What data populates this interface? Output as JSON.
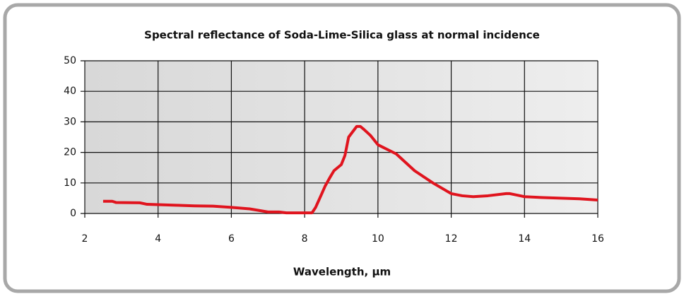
{
  "chart_data": {
    "type": "line",
    "title": "Spectral reflectance of Soda-Lime-Silica glass at normal incidence",
    "x_label": "Wavelength, µm",
    "series": [
      {
        "name": "Reflectance",
        "color": "#e0141e",
        "x": [
          2.5,
          2.75,
          2.85,
          3.5,
          3.7,
          4.5,
          5,
          5.5,
          6,
          6.5,
          7,
          7.3,
          7.5,
          8,
          8.2,
          8.3,
          8.45,
          8.56,
          8.7,
          8.8,
          9.0,
          9.1,
          9.2,
          9.42,
          9.52,
          9.62,
          9.8,
          10,
          10.5,
          11,
          11.5,
          12,
          12.3,
          12.6,
          13,
          13.5,
          13.6,
          13.8,
          14,
          14.5,
          15,
          15.5,
          16
        ],
        "values": [
          4,
          4,
          3.6,
          3.5,
          3,
          2.7,
          2.5,
          2.4,
          2,
          1.5,
          0.5,
          0.5,
          0.2,
          0.2,
          0.2,
          2,
          6,
          9,
          12,
          14,
          16,
          19,
          25,
          28.5,
          28.5,
          27.5,
          25.5,
          22.5,
          19.5,
          14,
          10,
          6.5,
          5.8,
          5.5,
          5.8,
          6.5,
          6.5,
          6,
          5.5,
          5.2,
          5,
          4.8,
          4.4
        ]
      }
    ],
    "xlim": [
      2,
      16
    ],
    "xticks": [
      2,
      4,
      6,
      8,
      10,
      12,
      14,
      16
    ],
    "ylim": [
      0,
      50
    ],
    "yticks": [
      0,
      10,
      20,
      30,
      40,
      50
    ],
    "grid": true
  }
}
